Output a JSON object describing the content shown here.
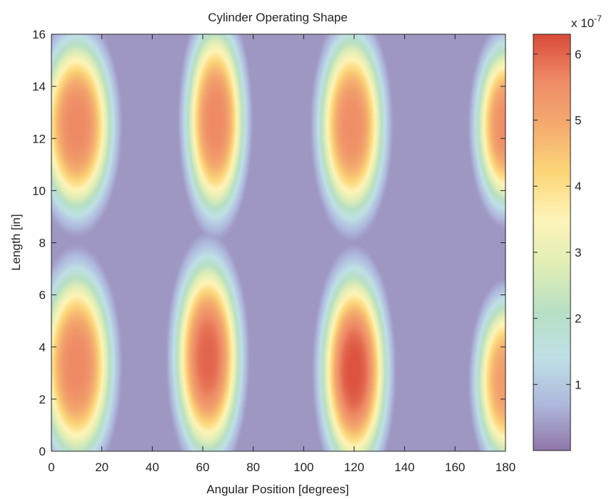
{
  "chart_data": {
    "type": "heatmap",
    "title": "Cylinder Operating Shape",
    "xlabel": "Angular Position [degrees]",
    "ylabel": "Length [in]",
    "xlim": [
      0,
      180
    ],
    "ylim": [
      0,
      16
    ],
    "x_ticks": [
      0,
      20,
      40,
      60,
      80,
      100,
      120,
      140,
      160,
      180
    ],
    "y_ticks": [
      0,
      2,
      4,
      6,
      8,
      10,
      12,
      14,
      16
    ],
    "colorbar": {
      "range": [
        0,
        6.3
      ],
      "ticks": [
        1,
        2,
        3,
        4,
        5,
        6
      ],
      "exponent_label": "x 10",
      "exponent": "-7",
      "colors": [
        "#8f76a8",
        "#aeb8dd",
        "#bfe0e6",
        "#b7dfc4",
        "#e0eeb5",
        "#fef4b8",
        "#fcd679",
        "#f4ac6f",
        "#ee8a66",
        "#d94a3a"
      ]
    },
    "grid": false,
    "peaks": [
      {
        "x": 10,
        "y": 12.5,
        "value": 5.6,
        "sx": 11,
        "sy": 2.6
      },
      {
        "x": 65,
        "y": 12.7,
        "value": 5.6,
        "sx": 9,
        "sy": 2.8
      },
      {
        "x": 119,
        "y": 12.5,
        "value": 5.5,
        "sx": 10,
        "sy": 2.7
      },
      {
        "x": 180,
        "y": 12.5,
        "value": 5.5,
        "sx": 9,
        "sy": 2.4
      },
      {
        "x": 10,
        "y": 3.3,
        "value": 5.6,
        "sx": 11,
        "sy": 2.8
      },
      {
        "x": 62,
        "y": 3.6,
        "value": 6.0,
        "sx": 10,
        "sy": 2.9
      },
      {
        "x": 120,
        "y": 3.1,
        "value": 6.2,
        "sx": 10,
        "sy": 2.9
      },
      {
        "x": 180,
        "y": 2.7,
        "value": 5.2,
        "sx": 9,
        "sy": 2.4
      }
    ]
  }
}
